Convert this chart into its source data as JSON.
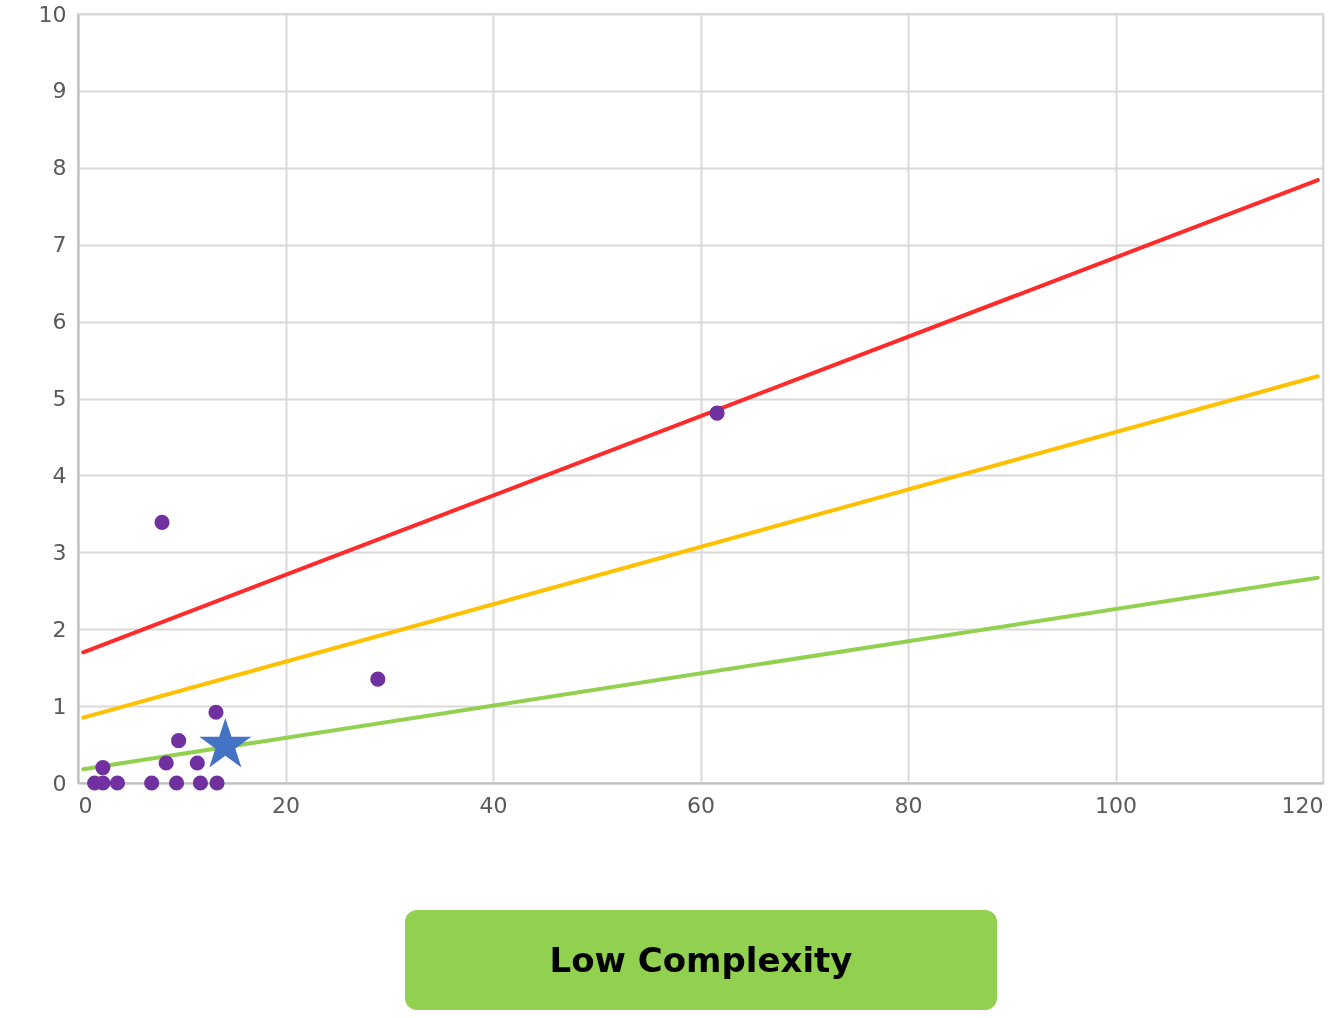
{
  "chart_data": {
    "type": "scatter",
    "xlim": [
      0,
      120
    ],
    "ylim": [
      0,
      10
    ],
    "xticks": [
      0,
      20,
      40,
      60,
      80,
      100,
      120
    ],
    "yticks": [
      0,
      1,
      2,
      3,
      4,
      5,
      6,
      7,
      8,
      9,
      10
    ],
    "grid": true,
    "series": [
      {
        "type": "line",
        "color": "#ff2a2a",
        "x": [
          0.5,
          119.5
        ],
        "values": [
          1.7,
          7.84
        ],
        "marker": "none"
      },
      {
        "type": "line",
        "color": "#ffc000",
        "x": [
          0.5,
          119.5
        ],
        "values": [
          0.85,
          5.29
        ],
        "marker": "none"
      },
      {
        "type": "line",
        "color": "#92d050",
        "x": [
          0.5,
          119.5
        ],
        "values": [
          0.18,
          2.67
        ],
        "marker": "none"
      },
      {
        "color": "#7030a0",
        "marker": "circle",
        "x": [
          8.1,
          61.6,
          28.9,
          13.3,
          9.7,
          8.5,
          11.5,
          1.6,
          2.4,
          2.4,
          3.8,
          7.1,
          9.5,
          11.8,
          13.4
        ],
        "values": [
          3.39,
          4.81,
          1.35,
          0.92,
          0.55,
          0.26,
          0.26,
          0,
          0.2,
          0,
          0,
          0,
          0,
          0,
          0
        ]
      },
      {
        "color": "#4472c4",
        "marker": "star",
        "x": [
          14.2
        ],
        "values": [
          0.49
        ]
      }
    ],
    "annotations": [
      "Low Complexity"
    ]
  }
}
